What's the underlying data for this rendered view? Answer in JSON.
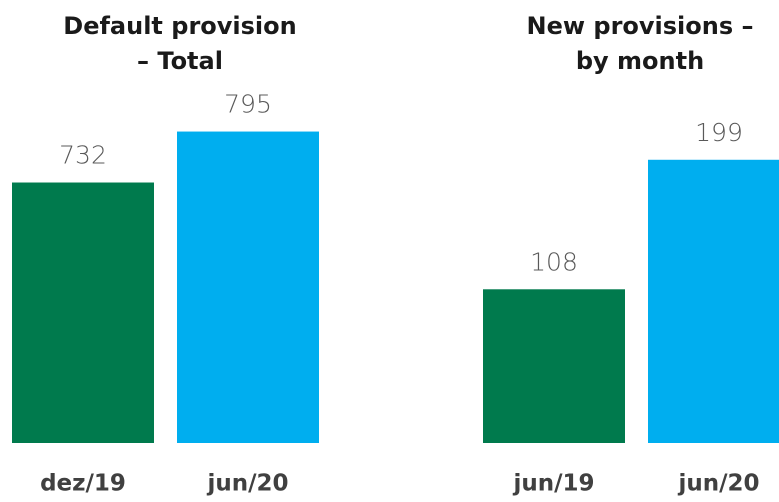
{
  "chart_data": [
    {
      "type": "bar",
      "title": [
        "Default provision",
        "– Total"
      ],
      "categories": [
        "dez/19",
        "jun/20"
      ],
      "values": [
        732,
        795
      ],
      "colors": [
        "#007a4d",
        "#00aeef"
      ],
      "ylim": [
        410,
        834
      ]
    },
    {
      "type": "bar",
      "title": [
        "New provisions –",
        "by month"
      ],
      "categories": [
        "jun/19",
        "jun/20"
      ],
      "values": [
        108,
        199
      ],
      "colors": [
        "#007a4d",
        "#00aeef"
      ],
      "ylim": [
        0,
        241
      ]
    }
  ]
}
